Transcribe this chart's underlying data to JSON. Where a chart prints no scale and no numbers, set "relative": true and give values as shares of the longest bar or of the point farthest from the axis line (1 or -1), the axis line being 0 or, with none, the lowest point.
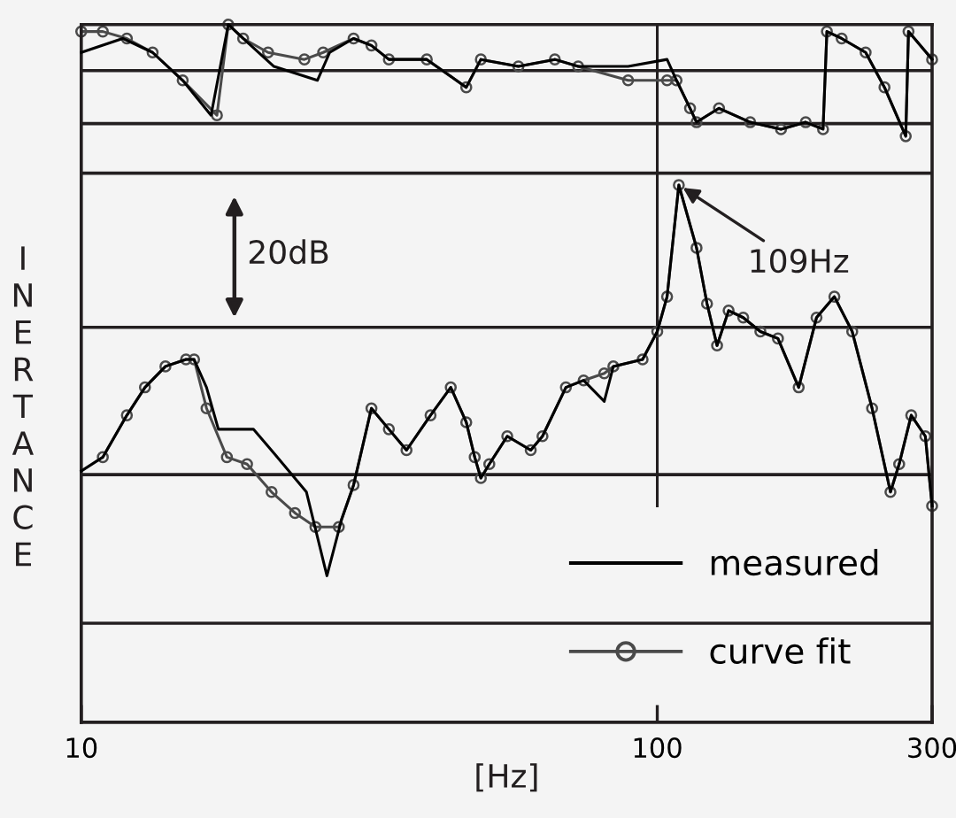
{
  "chart_data": {
    "type": "line",
    "relative": true,
    "xlabel": "[Hz]",
    "ylabel": "INERTANCE",
    "log": "x",
    "xlim": [
      10,
      300
    ],
    "xticks": [
      10,
      100,
      300
    ],
    "legend": "bottom right",
    "grid": false,
    "annotations": [
      "20dB",
      {
        "text": "109Hz",
        "x": 109,
        "y": 0.77
      }
    ],
    "ref_lines": [
      {
        "axis": "y",
        "value": 0.934
      },
      {
        "axis": "y",
        "value": 0.858
      },
      {
        "axis": "y",
        "value": 0.787
      },
      {
        "axis": "y",
        "value": 0.566
      },
      {
        "axis": "y",
        "value": 0.355
      },
      {
        "axis": "y",
        "value": 0.142
      },
      {
        "axis": "x",
        "value": 100
      }
    ],
    "series": [
      {
        "color": "#000000",
        "marker": "none",
        "line_style": "solid",
        "x": [
          10.0,
          11.8,
          13.3,
          15.0,
          16.8,
          18.0,
          19.1,
          21.6,
          25.7,
          27.0,
          29.7,
          31.9,
          34.2,
          39.8,
          46.6,
          49.4,
          57.4,
          66.4,
          72.9,
          89.0,
          104,
          108,
          114,
          117,
          128,
          145,
          164,
          181,
          194,
          197,
          209,
          230,
          248,
          270,
          273,
          300
        ],
        "values": [
          0.96,
          0.98,
          0.96,
          0.92,
          0.87,
          1.0,
          0.98,
          0.94,
          0.92,
          0.96,
          0.98,
          0.97,
          0.95,
          0.95,
          0.91,
          0.95,
          0.94,
          0.95,
          0.94,
          0.94,
          0.95,
          0.92,
          0.88,
          0.86,
          0.88,
          0.86,
          0.85,
          0.86,
          0.85,
          0.99,
          0.98,
          0.96,
          0.91,
          0.84,
          0.99,
          0.95
        ]
      },
      {
        "color": "#4a4a4a",
        "marker": "circle",
        "line_style": "solid",
        "x": [
          10.0,
          10.9,
          12.0,
          13.3,
          15.0,
          17.2,
          18.0,
          19.1,
          21.1,
          24.4,
          26.3,
          29.7,
          31.9,
          34.2,
          39.8,
          46.6,
          49.4,
          57.4,
          66.4,
          72.9,
          89.0,
          104,
          108,
          114,
          117,
          128,
          145,
          164,
          181,
          194,
          197,
          209,
          230,
          248,
          270,
          273,
          300
        ],
        "values": [
          0.99,
          0.99,
          0.98,
          0.96,
          0.92,
          0.87,
          1.0,
          0.98,
          0.96,
          0.95,
          0.96,
          0.98,
          0.97,
          0.95,
          0.95,
          0.91,
          0.95,
          0.94,
          0.95,
          0.94,
          0.92,
          0.92,
          0.92,
          0.88,
          0.86,
          0.88,
          0.86,
          0.85,
          0.86,
          0.85,
          0.99,
          0.98,
          0.96,
          0.91,
          0.84,
          0.99,
          0.95
        ]
      },
      {
        "name": "measured",
        "color": "#000000",
        "marker": "none",
        "line_style": "solid",
        "x": [
          10.0,
          10.9,
          12.0,
          12.9,
          14.0,
          15.2,
          15.7,
          16.5,
          17.3,
          19.9,
          21.9,
          24.6,
          26.7,
          28.3,
          29.7,
          31.9,
          34.2,
          36.7,
          40.4,
          43.8,
          46.6,
          48.2,
          49.4,
          51.1,
          54.9,
          60.3,
          63.2,
          69.4,
          74.5,
          80.9,
          83.9,
          94.3,
          100,
          104,
          109,
          117,
          122,
          127,
          133,
          141,
          151,
          162,
          176,
          189,
          203,
          218,
          236,
          254,
          263,
          276,
          292,
          300
        ],
        "values": [
          0.36,
          0.38,
          0.44,
          0.48,
          0.51,
          0.52,
          0.52,
          0.48,
          0.42,
          0.42,
          0.38,
          0.33,
          0.21,
          0.29,
          0.34,
          0.45,
          0.42,
          0.39,
          0.44,
          0.48,
          0.43,
          0.38,
          0.35,
          0.37,
          0.41,
          0.39,
          0.41,
          0.48,
          0.49,
          0.46,
          0.51,
          0.52,
          0.56,
          0.61,
          0.77,
          0.68,
          0.6,
          0.54,
          0.59,
          0.58,
          0.56,
          0.55,
          0.48,
          0.58,
          0.61,
          0.56,
          0.45,
          0.33,
          0.37,
          0.44,
          0.41,
          0.31
        ]
      },
      {
        "name": "curve fit",
        "color": "#4a4a4a",
        "marker": "circle",
        "line_style": "solid",
        "x": [
          10.9,
          12.0,
          12.9,
          14.0,
          15.2,
          15.7,
          16.5,
          17.9,
          19.4,
          21.4,
          23.5,
          25.5,
          28.0,
          29.7,
          31.9,
          34.2,
          36.7,
          40.4,
          43.8,
          46.6,
          48.2,
          49.4,
          51.1,
          54.9,
          60.3,
          63.2,
          69.4,
          74.5,
          80.9,
          83.9,
          94.3,
          100,
          104,
          109,
          117,
          122,
          127,
          133,
          141,
          151,
          162,
          176,
          189,
          203,
          218,
          236,
          254,
          263,
          276,
          292,
          300
        ],
        "values": [
          0.38,
          0.44,
          0.48,
          0.51,
          0.52,
          0.52,
          0.45,
          0.38,
          0.37,
          0.33,
          0.3,
          0.28,
          0.28,
          0.34,
          0.45,
          0.42,
          0.39,
          0.44,
          0.48,
          0.43,
          0.38,
          0.35,
          0.37,
          0.41,
          0.39,
          0.41,
          0.48,
          0.49,
          0.5,
          0.51,
          0.52,
          0.56,
          0.61,
          0.77,
          0.68,
          0.6,
          0.54,
          0.59,
          0.58,
          0.56,
          0.55,
          0.48,
          0.58,
          0.61,
          0.56,
          0.45,
          0.33,
          0.37,
          0.44,
          0.41,
          0.31
        ]
      }
    ]
  }
}
